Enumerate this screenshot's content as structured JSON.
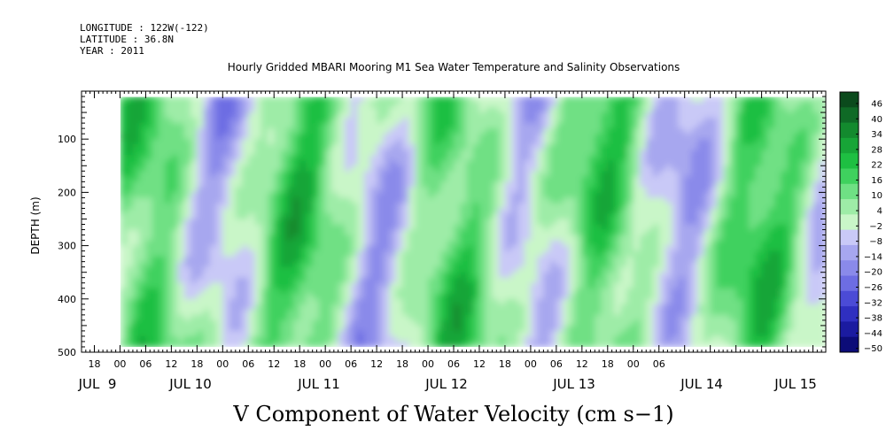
{
  "header": {
    "longitude": "LONGITUDE : 122W(-122)",
    "latitude": "LATITUDE : 36.8N",
    "year": "YEAR : 2011"
  },
  "chart_data": {
    "type": "heatmap",
    "title": "Hourly Gridded MBARI Mooring M1 Sea Water Temperature and Salinity Observations",
    "xlabel": "V Component of Water Velocity (cm s−1)",
    "ylabel": "DEPTH (m)",
    "y_reversed": true,
    "ylim": [
      500,
      10
    ],
    "y_ticks": [
      100,
      200,
      300,
      400,
      500
    ],
    "y_tick_labels": [
      "100",
      "200",
      "300",
      "400",
      "500"
    ],
    "x_range_hours": [
      -9,
      165
    ],
    "x_hour_ticks": [
      "18",
      "00",
      "06",
      "12",
      "18",
      "00",
      "06",
      "12",
      "18",
      "00",
      "06",
      "12",
      "18",
      "00",
      "06",
      "12",
      "18",
      "00",
      "06",
      "12",
      "18",
      "00",
      "06"
    ],
    "x_day_labels": [
      "JUL  9",
      "JUL 10",
      "JUL 11",
      "JUL 12",
      "JUL 13",
      "JUL 14",
      "JUL 15"
    ],
    "colorbar_levels": [
      "46",
      "40",
      "34",
      "28",
      "22",
      "16",
      "10",
      "4",
      "−2",
      "−8",
      "−14",
      "−20",
      "−26",
      "−32",
      "−38",
      "−44",
      "−50"
    ],
    "colorbar_colors": [
      "#0b4a1c",
      "#0f6a26",
      "#138a2e",
      "#17a537",
      "#1ebf42",
      "#3fd15e",
      "#6fe084",
      "#9eeca7",
      "#c9f6c8",
      "#c9c9f7",
      "#a7a7ef",
      "#8a8aea",
      "#6d6de3",
      "#4b4bd6",
      "#2f2fc0",
      "#1b1ba0",
      "#0c0c78"
    ],
    "data_start_hour": 0,
    "gaps": [
      {
        "hour_start": 0,
        "hour_end": 1.5,
        "depth_top": 20,
        "depth_bottom": 490
      },
      {
        "hour_start": 0,
        "hour_end": -9,
        "depth_top": 10,
        "depth_bottom": 500
      }
    ],
    "summary": "Alternating bands of northward (green, positive) and southward (blue, negative) velocity between about 20 m and 490 m depth; values mostly within -20 to +22 cm/s"
  }
}
